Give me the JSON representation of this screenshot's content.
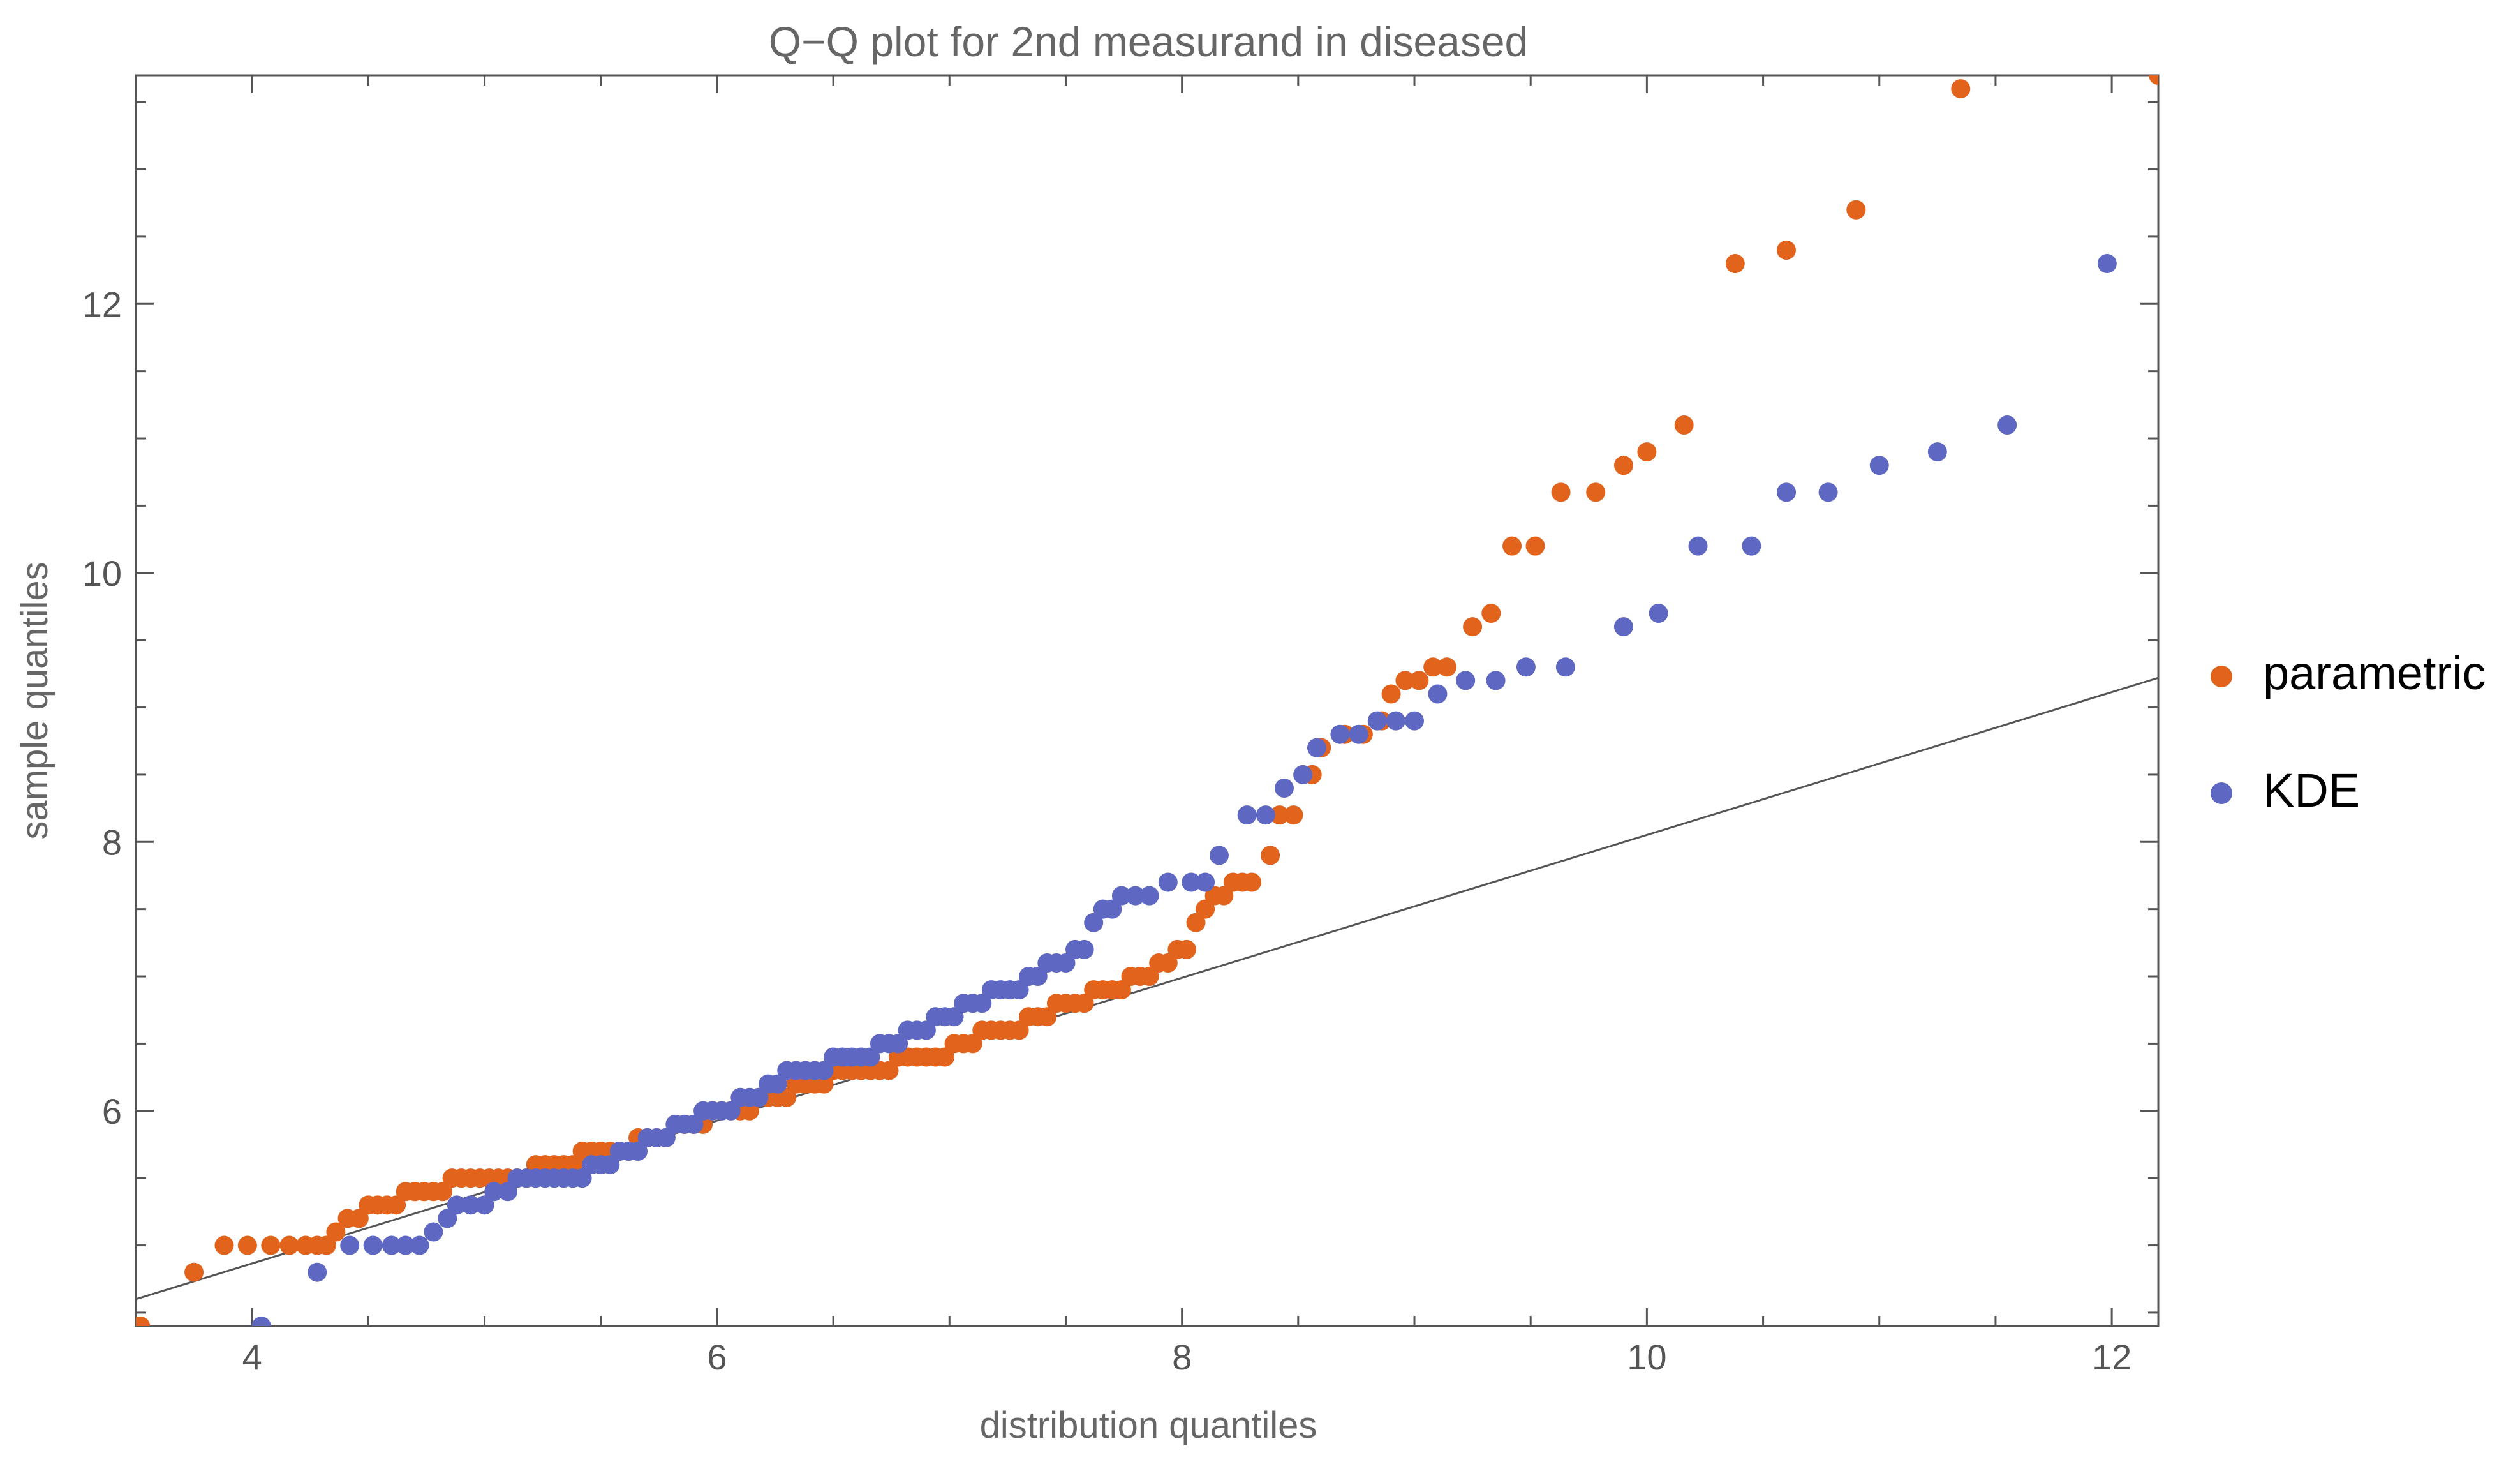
{
  "chart_data": {
    "type": "scatter",
    "title": "Q−Q plot for 2nd measurand in diseased",
    "xlabel": "distribution quantiles",
    "ylabel": "sample quantiles",
    "xlim": [
      3.5,
      12.2
    ],
    "ylim": [
      4.4,
      13.7
    ],
    "xticks": [
      4,
      6,
      8,
      10,
      12
    ],
    "yticks": [
      6,
      8,
      10,
      12
    ],
    "reference_line": {
      "x0": 3.5,
      "y0": 4.6,
      "x1": 12.2,
      "y1": 9.22,
      "color": "#555555"
    },
    "legend_position": "right",
    "series": [
      {
        "name": "parametric",
        "color": "#e1631c",
        "points": [
          [
            3.52,
            4.4
          ],
          [
            3.75,
            4.8
          ],
          [
            3.88,
            5.0
          ],
          [
            3.98,
            5.0
          ],
          [
            4.08,
            5.0
          ],
          [
            4.16,
            5.0
          ],
          [
            4.23,
            5.0
          ],
          [
            4.28,
            5.0
          ],
          [
            4.32,
            5.0
          ],
          [
            4.36,
            5.1
          ],
          [
            4.41,
            5.2
          ],
          [
            4.46,
            5.2
          ],
          [
            4.5,
            5.3
          ],
          [
            4.54,
            5.3
          ],
          [
            4.58,
            5.3
          ],
          [
            4.62,
            5.3
          ],
          [
            4.66,
            5.4
          ],
          [
            4.7,
            5.4
          ],
          [
            4.74,
            5.4
          ],
          [
            4.78,
            5.4
          ],
          [
            4.82,
            5.4
          ],
          [
            4.86,
            5.5
          ],
          [
            4.9,
            5.5
          ],
          [
            4.94,
            5.5
          ],
          [
            4.98,
            5.5
          ],
          [
            5.02,
            5.5
          ],
          [
            5.06,
            5.5
          ],
          [
            5.1,
            5.5
          ],
          [
            5.14,
            5.5
          ],
          [
            5.18,
            5.5
          ],
          [
            5.22,
            5.6
          ],
          [
            5.26,
            5.6
          ],
          [
            5.3,
            5.6
          ],
          [
            5.34,
            5.6
          ],
          [
            5.38,
            5.6
          ],
          [
            5.42,
            5.7
          ],
          [
            5.46,
            5.7
          ],
          [
            5.5,
            5.7
          ],
          [
            5.54,
            5.7
          ],
          [
            5.58,
            5.7
          ],
          [
            5.62,
            5.7
          ],
          [
            5.66,
            5.8
          ],
          [
            5.7,
            5.8
          ],
          [
            5.74,
            5.8
          ],
          [
            5.78,
            5.8
          ],
          [
            5.82,
            5.9
          ],
          [
            5.86,
            5.9
          ],
          [
            5.9,
            5.9
          ],
          [
            5.94,
            5.9
          ],
          [
            5.98,
            6.0
          ],
          [
            6.02,
            6.0
          ],
          [
            6.06,
            6.0
          ],
          [
            6.1,
            6.0
          ],
          [
            6.14,
            6.0
          ],
          [
            6.18,
            6.1
          ],
          [
            6.22,
            6.1
          ],
          [
            6.26,
            6.1
          ],
          [
            6.3,
            6.1
          ],
          [
            6.34,
            6.2
          ],
          [
            6.38,
            6.2
          ],
          [
            6.42,
            6.2
          ],
          [
            6.46,
            6.2
          ],
          [
            6.5,
            6.3
          ],
          [
            6.54,
            6.3
          ],
          [
            6.58,
            6.3
          ],
          [
            6.62,
            6.3
          ],
          [
            6.66,
            6.3
          ],
          [
            6.7,
            6.3
          ],
          [
            6.74,
            6.3
          ],
          [
            6.78,
            6.4
          ],
          [
            6.82,
            6.4
          ],
          [
            6.86,
            6.4
          ],
          [
            6.9,
            6.4
          ],
          [
            6.94,
            6.4
          ],
          [
            6.98,
            6.4
          ],
          [
            7.02,
            6.5
          ],
          [
            7.06,
            6.5
          ],
          [
            7.1,
            6.5
          ],
          [
            7.14,
            6.6
          ],
          [
            7.18,
            6.6
          ],
          [
            7.22,
            6.6
          ],
          [
            7.26,
            6.6
          ],
          [
            7.3,
            6.6
          ],
          [
            7.34,
            6.7
          ],
          [
            7.38,
            6.7
          ],
          [
            7.42,
            6.7
          ],
          [
            7.46,
            6.8
          ],
          [
            7.5,
            6.8
          ],
          [
            7.54,
            6.8
          ],
          [
            7.58,
            6.8
          ],
          [
            7.62,
            6.9
          ],
          [
            7.66,
            6.9
          ],
          [
            7.7,
            6.9
          ],
          [
            7.74,
            6.9
          ],
          [
            7.78,
            7.0
          ],
          [
            7.82,
            7.0
          ],
          [
            7.86,
            7.0
          ],
          [
            7.9,
            7.1
          ],
          [
            7.94,
            7.1
          ],
          [
            7.98,
            7.2
          ],
          [
            8.02,
            7.2
          ],
          [
            8.06,
            7.4
          ],
          [
            8.1,
            7.5
          ],
          [
            8.14,
            7.6
          ],
          [
            8.18,
            7.6
          ],
          [
            8.22,
            7.7
          ],
          [
            8.26,
            7.7
          ],
          [
            8.3,
            7.7
          ],
          [
            8.38,
            7.9
          ],
          [
            8.42,
            8.2
          ],
          [
            8.48,
            8.2
          ],
          [
            8.56,
            8.5
          ],
          [
            8.6,
            8.7
          ],
          [
            8.7,
            8.8
          ],
          [
            8.78,
            8.8
          ],
          [
            8.86,
            8.9
          ],
          [
            8.9,
            9.1
          ],
          [
            8.96,
            9.2
          ],
          [
            9.02,
            9.2
          ],
          [
            9.08,
            9.3
          ],
          [
            9.14,
            9.3
          ],
          [
            9.25,
            9.6
          ],
          [
            9.33,
            9.7
          ],
          [
            9.42,
            10.2
          ],
          [
            9.52,
            10.2
          ],
          [
            9.63,
            10.6
          ],
          [
            9.78,
            10.6
          ],
          [
            9.9,
            10.8
          ],
          [
            10.0,
            10.9
          ],
          [
            10.16,
            11.1
          ],
          [
            10.38,
            12.3
          ],
          [
            10.6,
            12.4
          ],
          [
            10.9,
            12.7
          ],
          [
            11.35,
            13.6
          ],
          [
            12.2,
            13.7
          ]
        ]
      },
      {
        "name": "KDE",
        "color": "#5e68c2",
        "points": [
          [
            4.04,
            4.4
          ],
          [
            4.28,
            4.8
          ],
          [
            4.42,
            5.0
          ],
          [
            4.52,
            5.0
          ],
          [
            4.6,
            5.0
          ],
          [
            4.66,
            5.0
          ],
          [
            4.72,
            5.0
          ],
          [
            4.78,
            5.1
          ],
          [
            4.84,
            5.2
          ],
          [
            4.88,
            5.3
          ],
          [
            4.94,
            5.3
          ],
          [
            5.0,
            5.3
          ],
          [
            5.04,
            5.4
          ],
          [
            5.1,
            5.4
          ],
          [
            5.14,
            5.5
          ],
          [
            5.18,
            5.5
          ],
          [
            5.22,
            5.5
          ],
          [
            5.26,
            5.5
          ],
          [
            5.3,
            5.5
          ],
          [
            5.34,
            5.5
          ],
          [
            5.38,
            5.5
          ],
          [
            5.42,
            5.5
          ],
          [
            5.46,
            5.6
          ],
          [
            5.5,
            5.6
          ],
          [
            5.54,
            5.6
          ],
          [
            5.58,
            5.7
          ],
          [
            5.62,
            5.7
          ],
          [
            5.66,
            5.7
          ],
          [
            5.7,
            5.8
          ],
          [
            5.74,
            5.8
          ],
          [
            5.78,
            5.8
          ],
          [
            5.82,
            5.9
          ],
          [
            5.86,
            5.9
          ],
          [
            5.9,
            5.9
          ],
          [
            5.94,
            6.0
          ],
          [
            5.98,
            6.0
          ],
          [
            6.02,
            6.0
          ],
          [
            6.06,
            6.0
          ],
          [
            6.1,
            6.1
          ],
          [
            6.14,
            6.1
          ],
          [
            6.18,
            6.1
          ],
          [
            6.22,
            6.2
          ],
          [
            6.26,
            6.2
          ],
          [
            6.3,
            6.3
          ],
          [
            6.34,
            6.3
          ],
          [
            6.38,
            6.3
          ],
          [
            6.42,
            6.3
          ],
          [
            6.46,
            6.3
          ],
          [
            6.5,
            6.4
          ],
          [
            6.54,
            6.4
          ],
          [
            6.58,
            6.4
          ],
          [
            6.62,
            6.4
          ],
          [
            6.66,
            6.4
          ],
          [
            6.7,
            6.5
          ],
          [
            6.74,
            6.5
          ],
          [
            6.78,
            6.5
          ],
          [
            6.82,
            6.6
          ],
          [
            6.86,
            6.6
          ],
          [
            6.9,
            6.6
          ],
          [
            6.94,
            6.7
          ],
          [
            6.98,
            6.7
          ],
          [
            7.02,
            6.7
          ],
          [
            7.06,
            6.8
          ],
          [
            7.1,
            6.8
          ],
          [
            7.14,
            6.8
          ],
          [
            7.18,
            6.9
          ],
          [
            7.22,
            6.9
          ],
          [
            7.26,
            6.9
          ],
          [
            7.3,
            6.9
          ],
          [
            7.34,
            7.0
          ],
          [
            7.38,
            7.0
          ],
          [
            7.42,
            7.1
          ],
          [
            7.46,
            7.1
          ],
          [
            7.5,
            7.1
          ],
          [
            7.54,
            7.2
          ],
          [
            7.58,
            7.2
          ],
          [
            7.62,
            7.4
          ],
          [
            7.66,
            7.5
          ],
          [
            7.7,
            7.5
          ],
          [
            7.74,
            7.6
          ],
          [
            7.8,
            7.6
          ],
          [
            7.86,
            7.6
          ],
          [
            7.94,
            7.7
          ],
          [
            8.04,
            7.7
          ],
          [
            8.1,
            7.7
          ],
          [
            8.16,
            7.9
          ],
          [
            8.28,
            8.2
          ],
          [
            8.36,
            8.2
          ],
          [
            8.44,
            8.4
          ],
          [
            8.52,
            8.5
          ],
          [
            8.58,
            8.7
          ],
          [
            8.68,
            8.8
          ],
          [
            8.76,
            8.8
          ],
          [
            8.84,
            8.9
          ],
          [
            8.92,
            8.9
          ],
          [
            9.0,
            8.9
          ],
          [
            9.1,
            9.1
          ],
          [
            9.22,
            9.2
          ],
          [
            9.35,
            9.2
          ],
          [
            9.48,
            9.3
          ],
          [
            9.65,
            9.3
          ],
          [
            9.9,
            9.6
          ],
          [
            10.05,
            9.7
          ],
          [
            10.22,
            10.2
          ],
          [
            10.45,
            10.2
          ],
          [
            10.6,
            10.6
          ],
          [
            10.78,
            10.6
          ],
          [
            11.0,
            10.8
          ],
          [
            11.25,
            10.9
          ],
          [
            11.55,
            11.1
          ],
          [
            11.98,
            12.3
          ]
        ]
      }
    ]
  }
}
